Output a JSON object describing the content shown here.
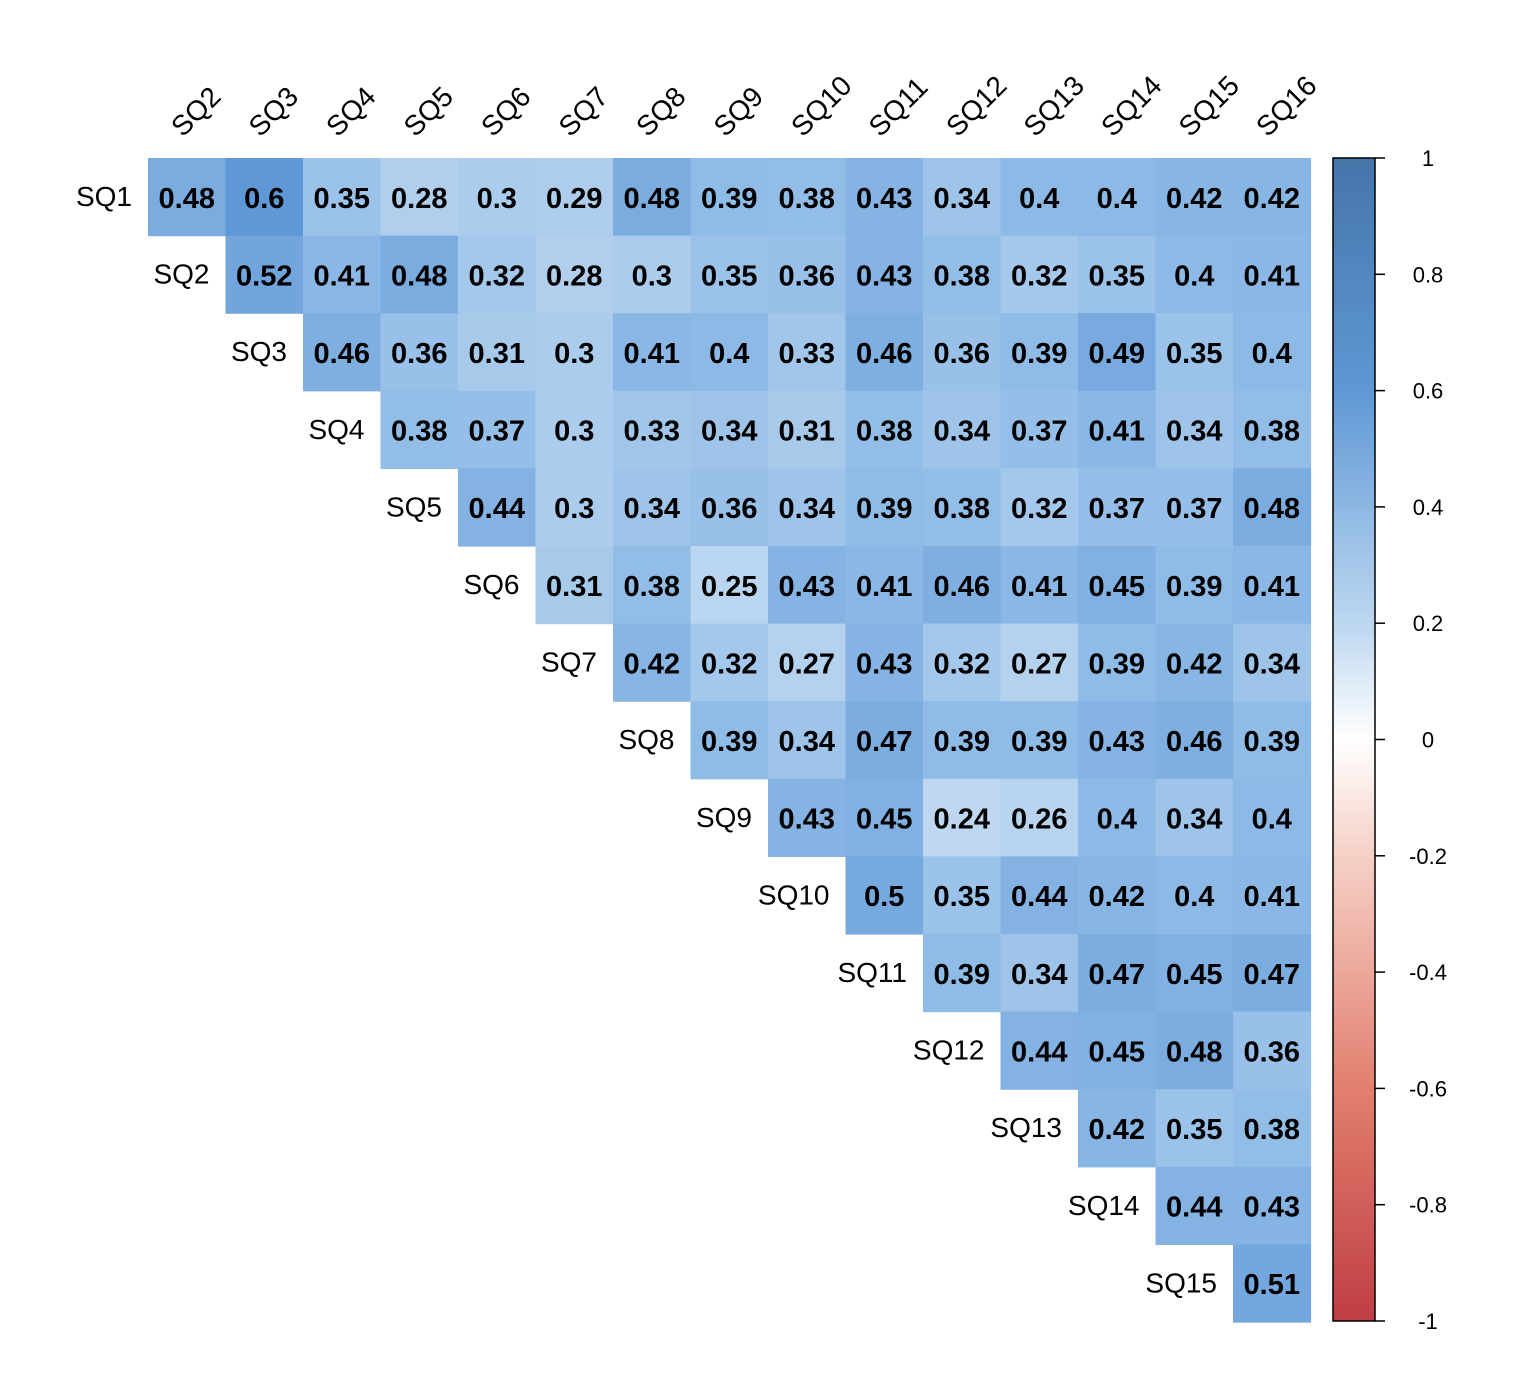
{
  "chart_data": {
    "type": "heatmap",
    "variant": "upper-triangle correlation matrix",
    "row_labels": [
      "SQ1",
      "SQ2",
      "SQ3",
      "SQ4",
      "SQ5",
      "SQ6",
      "SQ7",
      "SQ8",
      "SQ9",
      "SQ10",
      "SQ11",
      "SQ12",
      "SQ13",
      "SQ14",
      "SQ15"
    ],
    "col_labels": [
      "SQ2",
      "SQ3",
      "SQ4",
      "SQ5",
      "SQ6",
      "SQ7",
      "SQ8",
      "SQ9",
      "SQ10",
      "SQ11",
      "SQ12",
      "SQ13",
      "SQ14",
      "SQ15",
      "SQ16"
    ],
    "values": [
      [
        0.48,
        0.6,
        0.35,
        0.28,
        0.3,
        0.29,
        0.48,
        0.39,
        0.38,
        0.43,
        0.34,
        0.4,
        0.4,
        0.42,
        0.42
      ],
      [
        0.52,
        0.41,
        0.48,
        0.32,
        0.28,
        0.3,
        0.35,
        0.36,
        0.43,
        0.38,
        0.32,
        0.35,
        0.4,
        0.41
      ],
      [
        0.46,
        0.36,
        0.31,
        0.3,
        0.41,
        0.4,
        0.33,
        0.46,
        0.36,
        0.39,
        0.49,
        0.35,
        0.4
      ],
      [
        0.38,
        0.37,
        0.3,
        0.33,
        0.34,
        0.31,
        0.38,
        0.34,
        0.37,
        0.41,
        0.34,
        0.38
      ],
      [
        0.44,
        0.3,
        0.34,
        0.36,
        0.34,
        0.39,
        0.38,
        0.32,
        0.37,
        0.37,
        0.48
      ],
      [
        0.31,
        0.38,
        0.25,
        0.43,
        0.41,
        0.46,
        0.41,
        0.45,
        0.39,
        0.41
      ],
      [
        0.42,
        0.32,
        0.27,
        0.43,
        0.32,
        0.27,
        0.39,
        0.42,
        0.34
      ],
      [
        0.39,
        0.34,
        0.47,
        0.39,
        0.39,
        0.43,
        0.46,
        0.39
      ],
      [
        0.43,
        0.45,
        0.24,
        0.26,
        0.4,
        0.34,
        0.4
      ],
      [
        0.5,
        0.35,
        0.44,
        0.42,
        0.4,
        0.41
      ],
      [
        0.39,
        0.34,
        0.47,
        0.45,
        0.47
      ],
      [
        0.44,
        0.45,
        0.48,
        0.36
      ],
      [
        0.42,
        0.35,
        0.38
      ],
      [
        0.44,
        0.43
      ],
      [
        0.51
      ]
    ],
    "colorbar": {
      "range": [
        -1,
        1
      ],
      "ticks": [
        "1",
        "0.8",
        "0.6",
        "0.4",
        "0.2",
        "0",
        "-0.2",
        "-0.4",
        "-0.6",
        "-0.8",
        "-1"
      ],
      "colors": {
        "negative": "#B2182B",
        "mid": "#FFFFFF",
        "positive": "#2166AC"
      }
    }
  }
}
